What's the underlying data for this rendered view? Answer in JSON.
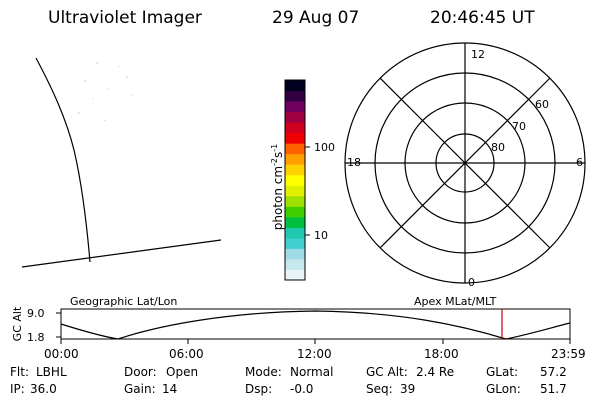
{
  "header": {
    "instrument": "Ultraviolet Imager",
    "date": "29 Aug 07",
    "time": "20:46:45 UT"
  },
  "colorbar": {
    "label": "photon cm",
    "label_sup1": "-2",
    "label_s": "s",
    "label_sup2": "-1",
    "ticks": [
      "100",
      "10"
    ],
    "tick_values": [
      100,
      10
    ],
    "scale": "log",
    "colors": [
      "#e8f4f8",
      "#c8e8f0",
      "#a0dce8",
      "#40d0d0",
      "#20c8b0",
      "#00c040",
      "#40d000",
      "#a0e000",
      "#e0f000",
      "#ffff00",
      "#ffd000",
      "#ffa000",
      "#ff6000",
      "#f00000",
      "#d00020",
      "#a00040",
      "#700060",
      "#300040",
      "#000020"
    ]
  },
  "polar_plot": {
    "mlt_labels": [
      "12",
      "18",
      "6",
      "0"
    ],
    "lat_labels": [
      "60",
      "70",
      "80"
    ],
    "lat_values": [
      60,
      70,
      80
    ]
  },
  "altitude_plot": {
    "left_title": "Geographic Lat/Lon",
    "right_title": "Apex MLat/MLT",
    "y_axis_label": "GC Alt",
    "y_ticks": [
      "9.0",
      "1.8"
    ],
    "y_values": [
      9.0,
      1.8
    ],
    "x_ticks": [
      "00:00",
      "06:00",
      "12:00",
      "18:00",
      "23:59"
    ],
    "current_time_marker": "20:46:45",
    "marker_color": "#cc0000"
  },
  "status": {
    "row1": [
      {
        "label": "Flt:",
        "value": "LBHL"
      },
      {
        "label": "Door:",
        "value": "Open"
      },
      {
        "label": "Mode:",
        "value": "Normal"
      },
      {
        "label": "GC Alt:",
        "value": "2.4 Re"
      },
      {
        "label": "GLat:",
        "value": "57.2"
      }
    ],
    "row2": [
      {
        "label": "IP:",
        "value": "36.0"
      },
      {
        "label": "Gain:",
        "value": "14"
      },
      {
        "label": "Dsp:",
        "value": "-0.0"
      },
      {
        "label": "Seq:",
        "value": "39"
      },
      {
        "label": "GLon:",
        "value": "51.7"
      }
    ]
  }
}
